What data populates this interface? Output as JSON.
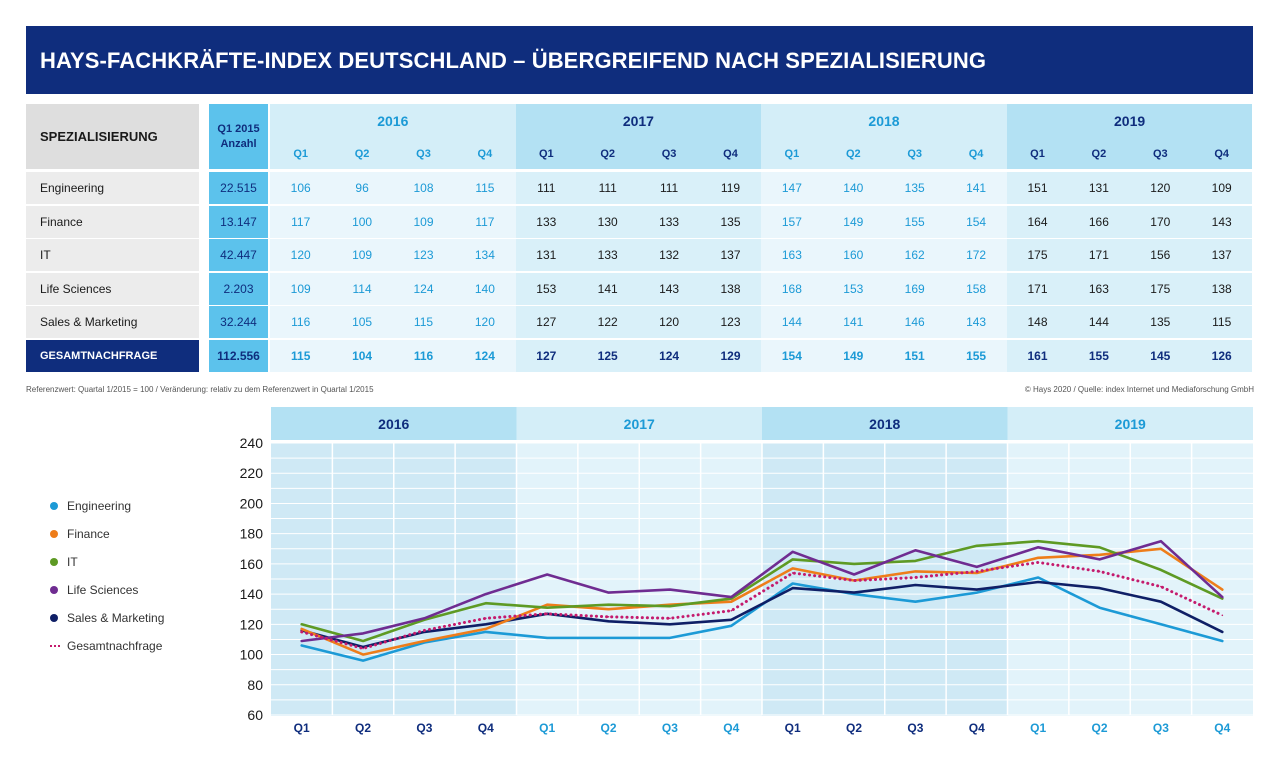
{
  "title": "HAYS-FACHKRÄFTE-INDEX DEUTSCHLAND – ÜBERGREIFEND NACH SPEZIALISIERUNG",
  "table": {
    "spec_header": "SPEZIALISIERUNG",
    "anzahl_header_line1": "Q1 2015",
    "anzahl_header_line2": "Anzahl",
    "years": [
      "2016",
      "2017",
      "2018",
      "2019"
    ],
    "quarters": [
      "Q1",
      "Q2",
      "Q3",
      "Q4",
      "Q1",
      "Q2",
      "Q3",
      "Q4",
      "Q1",
      "Q2",
      "Q3",
      "Q4",
      "Q1",
      "Q2",
      "Q3",
      "Q4"
    ],
    "rows": [
      {
        "label": "Engineering",
        "anzahl": "22.515",
        "values": [
          106,
          96,
          108,
          115,
          111,
          111,
          111,
          119,
          147,
          140,
          135,
          141,
          151,
          131,
          120,
          109
        ]
      },
      {
        "label": "Finance",
        "anzahl": "13.147",
        "values": [
          117,
          100,
          109,
          117,
          133,
          130,
          133,
          135,
          157,
          149,
          155,
          154,
          164,
          166,
          170,
          143
        ]
      },
      {
        "label": "IT",
        "anzahl": "42.447",
        "values": [
          120,
          109,
          123,
          134,
          131,
          133,
          132,
          137,
          163,
          160,
          162,
          172,
          175,
          171,
          156,
          137
        ]
      },
      {
        "label": "Life Sciences",
        "anzahl": "2.203",
        "values": [
          109,
          114,
          124,
          140,
          153,
          141,
          143,
          138,
          168,
          153,
          169,
          158,
          171,
          163,
          175,
          138
        ]
      },
      {
        "label": "Sales & Marketing",
        "anzahl": "32.244",
        "values": [
          116,
          105,
          115,
          120,
          127,
          122,
          120,
          123,
          144,
          141,
          146,
          143,
          148,
          144,
          135,
          115
        ]
      },
      {
        "label": "GESAMTNACHFRAGE",
        "anzahl": "112.556",
        "values": [
          115,
          104,
          116,
          124,
          127,
          125,
          124,
          129,
          154,
          149,
          151,
          155,
          161,
          155,
          145,
          126
        ],
        "total": true
      }
    ]
  },
  "footnote_left": "Referenzwert: Quartal 1/2015 = 100 / Veränderung: relativ zu dem Referenzwert in Quartal 1/2015",
  "footnote_right": "© Hays 2020 / Quelle: index Internet und Mediaforschung GmbH",
  "colors": {
    "navy": "#0f2d7d",
    "cyan": "#5cc2ec",
    "band_light": "#d4eef8",
    "band_mid": "#b3e1f3",
    "blue_text": "#1c9ad6"
  },
  "chart_data": {
    "type": "line",
    "categories": [
      "Q1",
      "Q2",
      "Q3",
      "Q4",
      "Q1",
      "Q2",
      "Q3",
      "Q4",
      "Q1",
      "Q2",
      "Q3",
      "Q4",
      "Q1",
      "Q2",
      "Q3",
      "Q4"
    ],
    "year_groups": [
      "2016",
      "2017",
      "2018",
      "2019"
    ],
    "ylim": [
      60,
      240
    ],
    "yticks": [
      60,
      80,
      100,
      120,
      140,
      160,
      180,
      200,
      220,
      240
    ],
    "legend_position": "left",
    "grid": true,
    "series": [
      {
        "name": "Engineering",
        "color": "#1c9ad6",
        "style": "solid",
        "values": [
          106,
          96,
          108,
          115,
          111,
          111,
          111,
          119,
          147,
          140,
          135,
          141,
          151,
          131,
          120,
          109
        ]
      },
      {
        "name": "Finance",
        "color": "#ee7d1a",
        "style": "solid",
        "values": [
          117,
          100,
          109,
          117,
          133,
          130,
          133,
          135,
          157,
          149,
          155,
          154,
          164,
          166,
          170,
          143
        ]
      },
      {
        "name": "IT",
        "color": "#5e9a24",
        "style": "solid",
        "values": [
          120,
          109,
          123,
          134,
          131,
          133,
          132,
          137,
          163,
          160,
          162,
          172,
          175,
          171,
          156,
          137
        ]
      },
      {
        "name": "Life Sciences",
        "color": "#6f2c91",
        "style": "solid",
        "values": [
          109,
          114,
          124,
          140,
          153,
          141,
          143,
          138,
          168,
          153,
          169,
          158,
          171,
          163,
          175,
          138
        ]
      },
      {
        "name": "Sales & Marketing",
        "color": "#0f1f66",
        "style": "solid",
        "values": [
          116,
          105,
          115,
          120,
          127,
          122,
          120,
          123,
          144,
          141,
          146,
          143,
          148,
          144,
          135,
          115
        ]
      },
      {
        "name": "Gesamtnachfrage",
        "color": "#c41b6d",
        "style": "dotted",
        "values": [
          115,
          104,
          116,
          124,
          127,
          125,
          124,
          129,
          154,
          149,
          151,
          155,
          161,
          155,
          145,
          126
        ]
      }
    ]
  }
}
